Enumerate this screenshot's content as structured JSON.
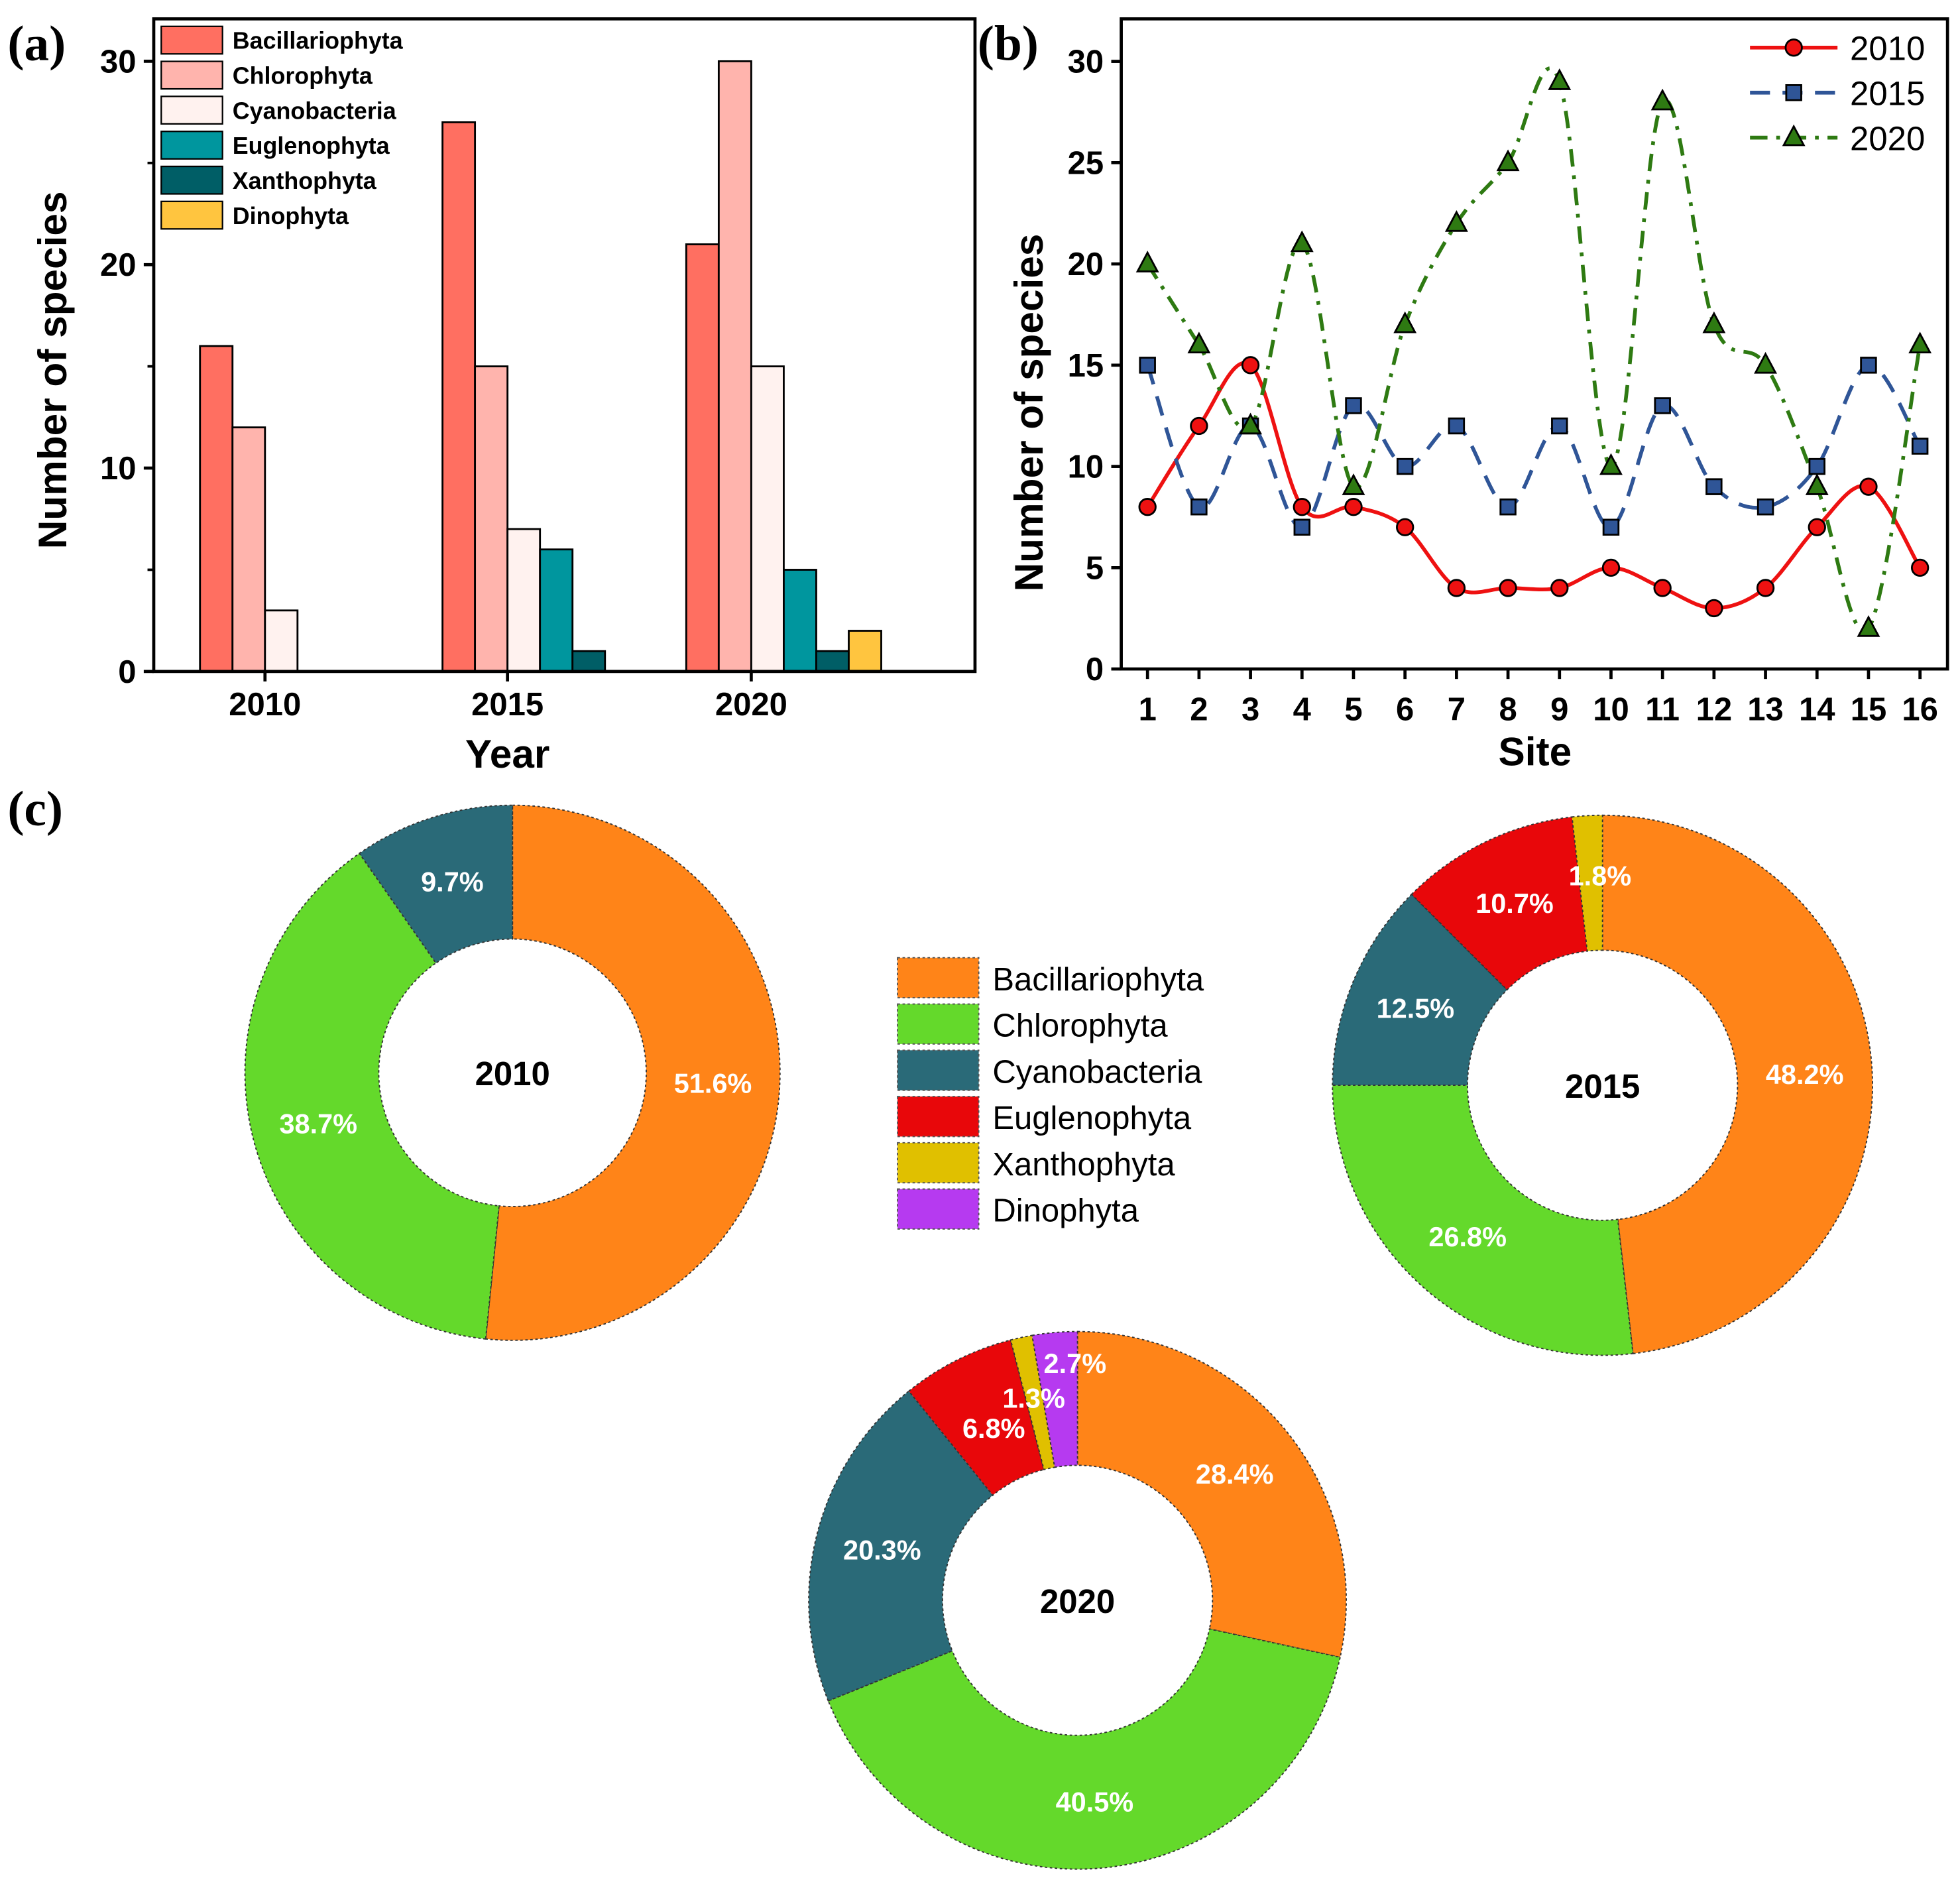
{
  "panel_labels": {
    "a": "(a)",
    "b": "(b)",
    "c": "(c)"
  },
  "colors": {
    "bar": {
      "Bacillariophyta": "#ff6f61",
      "Chlorophyta": "#ffb4ad",
      "Cyanobacteria": "#fff2ef",
      "Euglenophyta": "#00969e",
      "Xanthophyta": "#005e66",
      "Dinophyta": "#ffc53f"
    },
    "line": {
      "2010": "#ee1111",
      "2015": "#2f5597",
      "2020": "#2e7a12"
    },
    "pie": {
      "Bacillariophyta": "#ff8418",
      "Chlorophyta": "#64d92b",
      "Cyanobacteria": "#2a6a78",
      "Euglenophyta": "#e8070a",
      "Xanthophyta": "#e0c000",
      "Dinophyta": "#b63af0"
    }
  },
  "chart_data": [
    {
      "id": "a",
      "type": "bar",
      "title": "",
      "xlabel": "Year",
      "ylabel": "Number of species",
      "ylim": [
        0,
        32
      ],
      "yticks": [
        0,
        10,
        20,
        30
      ],
      "categories": [
        "2010",
        "2015",
        "2020"
      ],
      "legend_position": "top-left",
      "series": [
        {
          "name": "Bacillariophyta",
          "values": [
            16,
            27,
            21
          ]
        },
        {
          "name": "Chlorophyta",
          "values": [
            12,
            15,
            30
          ]
        },
        {
          "name": "Cyanobacteria",
          "values": [
            3,
            7,
            15
          ]
        },
        {
          "name": "Euglenophyta",
          "values": [
            0,
            6,
            5
          ]
        },
        {
          "name": "Xanthophyta",
          "values": [
            0,
            1,
            1
          ]
        },
        {
          "name": "Dinophyta",
          "values": [
            0,
            0,
            2
          ]
        }
      ]
    },
    {
      "id": "b",
      "type": "line",
      "title": "",
      "xlabel": "Site",
      "ylabel": "Number of species",
      "ylim": [
        0,
        32
      ],
      "yticks": [
        0,
        5,
        10,
        15,
        20,
        25,
        30
      ],
      "x": [
        1,
        2,
        3,
        4,
        5,
        6,
        7,
        8,
        9,
        10,
        11,
        12,
        13,
        14,
        15,
        16
      ],
      "legend_position": "top-right",
      "series": [
        {
          "name": "2010",
          "marker": "circle",
          "style": "solid",
          "values": [
            8,
            12,
            15,
            8,
            8,
            7,
            4,
            4,
            4,
            5,
            4,
            3,
            4,
            7,
            9,
            5
          ]
        },
        {
          "name": "2015",
          "marker": "square",
          "style": "dashed",
          "values": [
            15,
            8,
            12,
            7,
            13,
            10,
            12,
            8,
            12,
            7,
            13,
            9,
            8,
            10,
            15,
            11
          ]
        },
        {
          "name": "2020",
          "marker": "triangle",
          "style": "dash-dot",
          "values": [
            20,
            16,
            12,
            21,
            9,
            17,
            22,
            25,
            29,
            10,
            28,
            17,
            15,
            9,
            2,
            16
          ]
        }
      ]
    },
    {
      "id": "c",
      "type": "pie",
      "legend_position": "center",
      "legend": [
        "Bacillariophyta",
        "Chlorophyta",
        "Cyanobacteria",
        "Euglenophyta",
        "Xanthophyta",
        "Dinophyta"
      ],
      "donuts": [
        {
          "title": "2010",
          "slices": [
            {
              "name": "Bacillariophyta",
              "value": 51.6,
              "label": "51.6%"
            },
            {
              "name": "Chlorophyta",
              "value": 38.7,
              "label": "38.7%"
            },
            {
              "name": "Cyanobacteria",
              "value": 9.7,
              "label": "9.7%"
            }
          ]
        },
        {
          "title": "2015",
          "slices": [
            {
              "name": "Bacillariophyta",
              "value": 48.2,
              "label": "48.2%"
            },
            {
              "name": "Chlorophyta",
              "value": 26.8,
              "label": "26.8%"
            },
            {
              "name": "Cyanobacteria",
              "value": 12.5,
              "label": "12.5%"
            },
            {
              "name": "Euglenophyta",
              "value": 10.7,
              "label": "10.7%"
            },
            {
              "name": "Xanthophyta",
              "value": 1.8,
              "label": "1.8%"
            }
          ]
        },
        {
          "title": "2020",
          "slices": [
            {
              "name": "Bacillariophyta",
              "value": 28.4,
              "label": "28.4%"
            },
            {
              "name": "Chlorophyta",
              "value": 40.5,
              "label": "40.5%"
            },
            {
              "name": "Cyanobacteria",
              "value": 20.3,
              "label": "20.3%"
            },
            {
              "name": "Euglenophyta",
              "value": 6.8,
              "label": "6.8%"
            },
            {
              "name": "Xanthophyta",
              "value": 1.3,
              "label": "1.3%"
            },
            {
              "name": "Dinophyta",
              "value": 2.7,
              "label": "2.7%"
            }
          ]
        }
      ]
    }
  ]
}
